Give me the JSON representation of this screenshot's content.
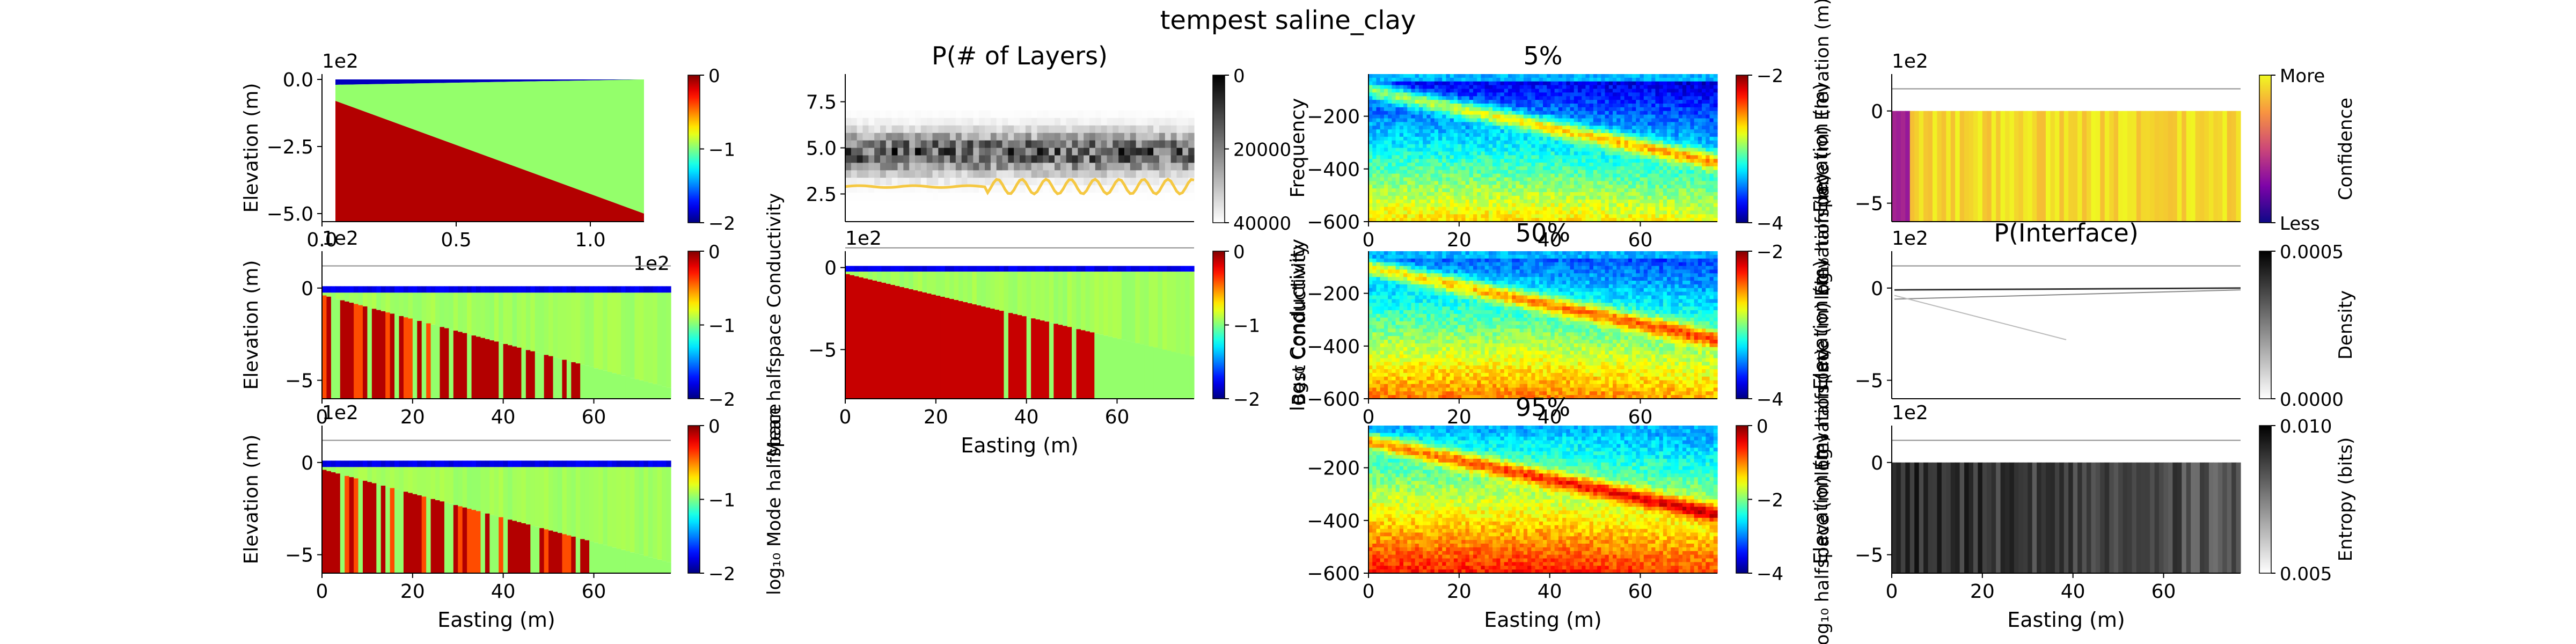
{
  "figure": {
    "title": "tempest saline_clay"
  },
  "colors": {
    "axis": "#000000",
    "reference_line": "#8c8c8c",
    "curve": "#f5c842"
  },
  "chart_data": [
    {
      "id": "true-model",
      "type": "heatmap",
      "title": "",
      "xlabel": "",
      "ylabel": "Elevation (m)",
      "x_ticks": [
        "0.0",
        "0.5",
        "1.0"
      ],
      "x_offset_text": "1e2",
      "y_ticks": [
        "0.0",
        "−2.5",
        "−5.0"
      ],
      "y_offset_text": "1e2",
      "xlim": [
        0,
        1.2
      ],
      "ylim": [
        -5.3,
        0.2
      ],
      "colormap": "jet",
      "colorbar": {
        "label": "",
        "ticks": [
          "0",
          "−1",
          "−2"
        ],
        "range": [
          -2,
          0
        ]
      }
    },
    {
      "id": "p-layers",
      "type": "heatmap",
      "title": "P(# of Layers)",
      "xlabel": "",
      "ylabel": "",
      "x_ticks": [],
      "y_ticks": [
        "2.5",
        "5.0",
        "7.5"
      ],
      "xlim": [
        0,
        1
      ],
      "ylim": [
        1,
        9
      ],
      "colormap": "greys",
      "colorbar": {
        "label": "",
        "ticks": [
          "0",
          "20000",
          "40000"
        ],
        "range": [
          0,
          55000
        ]
      }
    },
    {
      "id": "p5",
      "type": "heatmap",
      "title": "5%",
      "xlabel": "",
      "ylabel": "Frequency",
      "x_ticks": [
        "0",
        "20",
        "40",
        "60"
      ],
      "y_ticks": [
        "−200",
        "−400",
        "−600"
      ],
      "xlim": [
        0,
        77
      ],
      "ylim": [
        -600,
        -40
      ],
      "colormap": "jet",
      "colorbar": {
        "label": "log₁₀ halfspace (m) Elevation (m)",
        "ticks": [
          "−2",
          "−4"
        ],
        "range": [
          -5.5,
          -0.5
        ]
      }
    },
    {
      "id": "confidence",
      "type": "heatmap",
      "title": "",
      "xlabel": "",
      "ylabel": "Elevation (m)",
      "x_ticks": [],
      "y_ticks": [
        "0",
        "−5"
      ],
      "y_offset_text": "1e2",
      "xlim": [
        0,
        77
      ],
      "ylim": [
        -6,
        2
      ],
      "colormap": "plasma",
      "colorbar": {
        "label": "Confidence",
        "ticks": [
          "More",
          "Less"
        ]
      }
    },
    {
      "id": "mean",
      "type": "heatmap",
      "title": "",
      "xlabel": "",
      "ylabel": "Elevation (m)",
      "x_ticks": [
        "0",
        "20",
        "40",
        "60"
      ],
      "y_ticks": [
        "0",
        "−5"
      ],
      "y_offset_text": "1e2",
      "xlim": [
        0,
        77
      ],
      "ylim": [
        -6,
        2
      ],
      "colormap": "jet",
      "colorbar": {
        "label": "Mean halfspace Conductivity",
        "ticks": [
          "0",
          "−1",
          "−2"
        ],
        "range": [
          -2,
          0
        ]
      }
    },
    {
      "id": "best",
      "type": "heatmap",
      "title": "",
      "xlabel": "Easting (m)",
      "ylabel": "",
      "x_ticks": [
        "0",
        "20",
        "40",
        "60"
      ],
      "y_ticks": [
        "0",
        "−5"
      ],
      "y_offset_text": "1e2",
      "xlim": [
        0,
        77
      ],
      "ylim": [
        -8,
        1
      ],
      "colormap": "jet",
      "colorbar": {
        "label": "Best Conductivity",
        "ticks": [
          "0",
          "−1",
          "−2"
        ],
        "range": [
          -2,
          0
        ]
      }
    },
    {
      "id": "p50",
      "type": "heatmap",
      "title": "50%",
      "xlabel": "",
      "ylabel": "log₁₀ Conductivity",
      "x_ticks": [
        "0",
        "20",
        "40",
        "60"
      ],
      "y_ticks": [
        "−200",
        "−400",
        "−600"
      ],
      "xlim": [
        0,
        77
      ],
      "ylim": [
        -600,
        -40
      ],
      "colormap": "jet",
      "colorbar": {
        "label": "log₁₀ halfspace (m) Elevation (m)",
        "ticks": [
          "−2",
          "−4"
        ],
        "range": [
          -5.5,
          -0.5
        ]
      }
    },
    {
      "id": "p-interface",
      "type": "heatmap",
      "title": "P(Interface)",
      "xlabel": "",
      "ylabel": "Elevation (m)",
      "x_ticks": [],
      "y_ticks": [
        "0",
        "−5"
      ],
      "y_offset_text": "1e2",
      "xlim": [
        0,
        77
      ],
      "ylim": [
        -6,
        2
      ],
      "colormap": "greys",
      "colorbar": {
        "label": "Density",
        "ticks": [
          "0.0005",
          "0.0000"
        ],
        "range": [
          0,
          0.001
        ]
      }
    },
    {
      "id": "mode",
      "type": "heatmap",
      "title": "",
      "xlabel": "Easting (m)",
      "ylabel": "Elevation (m)",
      "x_ticks": [
        "0",
        "20",
        "40",
        "60"
      ],
      "y_ticks": [
        "0",
        "−5"
      ],
      "y_offset_text": "1e2",
      "xlim": [
        0,
        77
      ],
      "ylim": [
        -6,
        2
      ],
      "colormap": "jet",
      "colorbar": {
        "label": "log₁₀ Mode halfspace",
        "ticks": [
          "0",
          "−1",
          "−2"
        ],
        "range": [
          -2,
          0
        ]
      }
    },
    {
      "id": "p95",
      "type": "heatmap",
      "title": "95%",
      "xlabel": "Easting (m)",
      "ylabel": "",
      "x_ticks": [
        "0",
        "20",
        "40",
        "60"
      ],
      "y_ticks": [
        "−200",
        "−400",
        "−600"
      ],
      "xlim": [
        0,
        77
      ],
      "ylim": [
        -600,
        -40
      ],
      "colormap": "jet",
      "colorbar": {
        "label": "log₁₀ halfspace (m) Elevation (m)",
        "ticks": [
          "0",
          "−2",
          "−4"
        ],
        "range": [
          -5.5,
          0
        ]
      }
    },
    {
      "id": "entropy",
      "type": "heatmap",
      "title": "",
      "xlabel": "Easting (m)",
      "ylabel": "Elevation (m)",
      "x_ticks": [
        "0",
        "20",
        "40",
        "60"
      ],
      "y_ticks": [
        "0",
        "−5"
      ],
      "y_offset_text": "1e2",
      "xlim": [
        0,
        77
      ],
      "ylim": [
        -6,
        2
      ],
      "colormap": "greys",
      "colorbar": {
        "label": "Entropy (bits)",
        "ticks": [
          "0.010",
          "0.005"
        ],
        "range": [
          0,
          0.012
        ]
      }
    }
  ]
}
